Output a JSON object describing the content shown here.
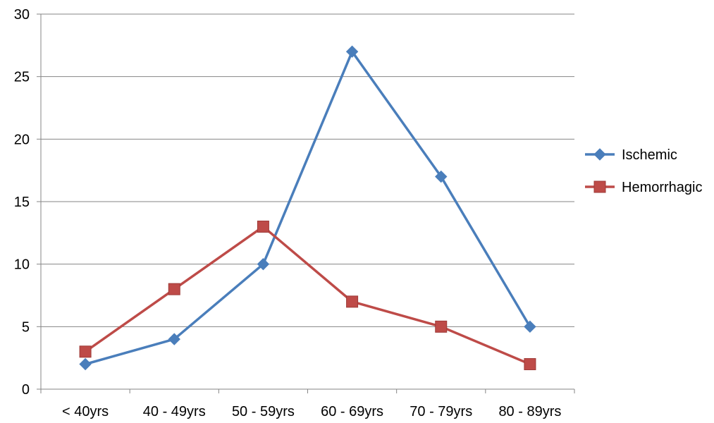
{
  "chart_data": {
    "type": "line",
    "categories": [
      "< 40yrs",
      "40 - 49yrs",
      "50 - 59yrs",
      "60 - 69yrs",
      "70 - 79yrs",
      "80 - 89yrs"
    ],
    "series": [
      {
        "name": "Ischemic",
        "values": [
          2,
          4,
          10,
          27,
          17,
          5
        ],
        "color": "#4a7ebb",
        "marker": "diamond"
      },
      {
        "name": "Hemorrhagic",
        "values": [
          3,
          8,
          13,
          7,
          5,
          2
        ],
        "color": "#be4b48",
        "marker": "square"
      }
    ],
    "ylim": [
      0,
      30
    ],
    "yticks": [
      0,
      5,
      10,
      15,
      20,
      25,
      30
    ],
    "grid": "horizontal",
    "legend_position": "right"
  }
}
